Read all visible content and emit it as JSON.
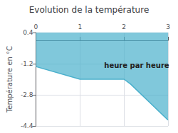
{
  "chart_data": {
    "type": "area",
    "title": "Evolution de la température",
    "ylabel": "Température en °C",
    "annotations": [
      {
        "text": "heure par heure",
        "x": 1.55,
        "y": -1.1
      }
    ],
    "x": [
      0,
      1,
      2,
      2.15,
      3
    ],
    "values": [
      -1.35,
      -2.0,
      -2.0,
      -2.25,
      -4.1
    ],
    "color": "#4ab0cc",
    "xlim": [
      0,
      3
    ],
    "xticks": [
      0,
      1,
      2,
      3
    ],
    "ylim": [
      -4.4,
      0.4
    ],
    "yticks": [
      0.4,
      -1.2,
      -2.8,
      -4.4
    ],
    "grid": true
  }
}
